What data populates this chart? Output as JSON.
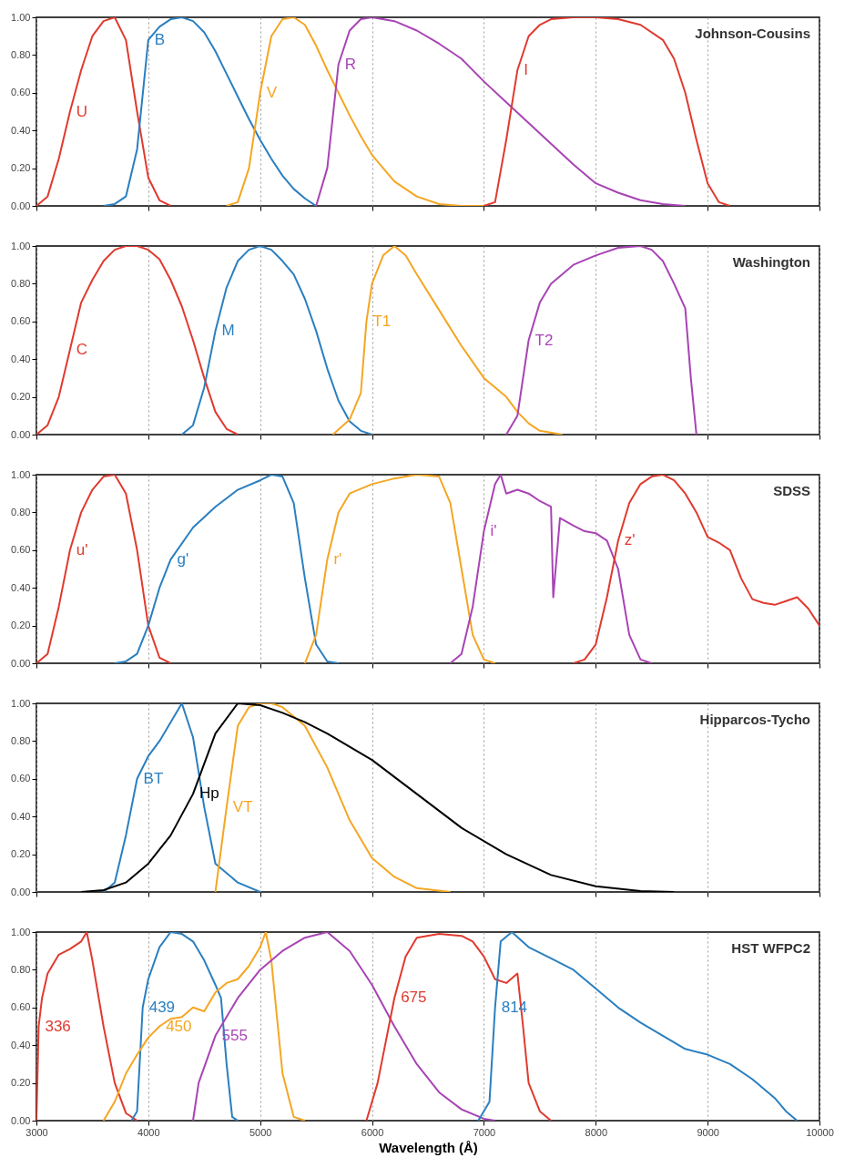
{
  "chart_data": [
    {
      "type": "line",
      "title": "Johnson-Cousins",
      "xlim": [
        3000,
        10000
      ],
      "xticks": [
        3000,
        4000,
        5000,
        6000,
        7000,
        8000,
        9000,
        10000
      ],
      "ylim": [
        0,
        1
      ],
      "yticks": [
        {
          "value": 0,
          "label": "0.00"
        },
        {
          "value": 0.2,
          "label": "0.20"
        },
        {
          "value": 0.4,
          "label": "0.40"
        },
        {
          "value": 0.6,
          "label": "0.60"
        },
        {
          "value": 0.8,
          "label": "0.80"
        },
        {
          "value": 1,
          "label": "1.00"
        }
      ],
      "grid": "x",
      "tick_labels": "y",
      "series": [
        {
          "name": "U",
          "color": "#e03a2f",
          "x": [
            3000,
            3100,
            3200,
            3300,
            3400,
            3500,
            3600,
            3700,
            3800,
            3900,
            4000,
            4100,
            4200
          ],
          "values": [
            0,
            0.05,
            0.25,
            0.5,
            0.72,
            0.9,
            0.98,
            1.0,
            0.88,
            0.5,
            0.15,
            0.03,
            0
          ]
        },
        {
          "name": "B",
          "color": "#2a7fc0",
          "x": [
            3600,
            3700,
            3800,
            3900,
            4000,
            4100,
            4200,
            4300,
            4400,
            4500,
            4600,
            4700,
            4800,
            4900,
            5000,
            5100,
            5200,
            5300,
            5400,
            5500
          ],
          "values": [
            0,
            0.01,
            0.05,
            0.3,
            0.88,
            0.95,
            0.99,
            1.0,
            0.98,
            0.92,
            0.82,
            0.7,
            0.58,
            0.46,
            0.35,
            0.25,
            0.16,
            0.09,
            0.04,
            0
          ]
        },
        {
          "name": "V",
          "color": "#f5a623",
          "x": [
            4700,
            4800,
            4900,
            5000,
            5100,
            5200,
            5300,
            5400,
            5500,
            5600,
            5700,
            5800,
            5900,
            6000,
            6200,
            6400,
            6600,
            6800,
            7000
          ],
          "values": [
            0,
            0.02,
            0.2,
            0.6,
            0.9,
            0.99,
            1.0,
            0.96,
            0.85,
            0.72,
            0.6,
            0.48,
            0.37,
            0.27,
            0.13,
            0.05,
            0.01,
            0,
            0
          ]
        },
        {
          "name": "R",
          "color": "#a844b4",
          "x": [
            5500,
            5600,
            5700,
            5800,
            5900,
            6000,
            6200,
            6400,
            6600,
            6800,
            7000,
            7200,
            7400,
            7600,
            7800,
            8000,
            8200,
            8400,
            8600,
            8800
          ],
          "values": [
            0,
            0.2,
            0.75,
            0.93,
            0.99,
            1.0,
            0.98,
            0.93,
            0.86,
            0.78,
            0.66,
            0.55,
            0.44,
            0.33,
            0.22,
            0.12,
            0.07,
            0.03,
            0.01,
            0
          ]
        },
        {
          "name": "I",
          "color": "#e03a2f",
          "x": [
            7000,
            7100,
            7200,
            7300,
            7400,
            7500,
            7600,
            7800,
            8000,
            8200,
            8400,
            8600,
            8700,
            8800,
            8900,
            9000,
            9100,
            9200
          ],
          "values": [
            0,
            0.02,
            0.35,
            0.72,
            0.9,
            0.96,
            0.99,
            1.0,
            1.0,
            0.99,
            0.96,
            0.88,
            0.78,
            0.6,
            0.35,
            0.12,
            0.02,
            0
          ]
        }
      ]
    },
    {
      "type": "line",
      "title": "Washington",
      "xlim": [
        3000,
        10000
      ],
      "xticks": [
        3000,
        4000,
        5000,
        6000,
        7000,
        8000,
        9000,
        10000
      ],
      "ylim": [
        0,
        1
      ],
      "yticks": [
        {
          "value": 0,
          "label": "0.00"
        },
        {
          "value": 0.2,
          "label": "0.20"
        },
        {
          "value": 0.4,
          "label": "0.40"
        },
        {
          "value": 0.6,
          "label": "0.60"
        },
        {
          "value": 0.8,
          "label": "0.80"
        },
        {
          "value": 1,
          "label": "1.00"
        }
      ],
      "grid": "x",
      "tick_labels": "y",
      "series": [
        {
          "name": "C",
          "color": "#e03a2f",
          "x": [
            3000,
            3100,
            3200,
            3300,
            3400,
            3500,
            3600,
            3700,
            3800,
            3900,
            4000,
            4100,
            4200,
            4300,
            4400,
            4500,
            4600,
            4700,
            4800
          ],
          "values": [
            0,
            0.05,
            0.2,
            0.45,
            0.7,
            0.82,
            0.92,
            0.98,
            1.0,
            1.0,
            0.98,
            0.93,
            0.82,
            0.68,
            0.5,
            0.3,
            0.12,
            0.03,
            0
          ]
        },
        {
          "name": "M",
          "color": "#2a7fc0",
          "x": [
            4300,
            4400,
            4500,
            4600,
            4700,
            4800,
            4900,
            5000,
            5100,
            5200,
            5300,
            5400,
            5500,
            5600,
            5700,
            5800,
            5900,
            6000
          ],
          "values": [
            0,
            0.05,
            0.25,
            0.55,
            0.78,
            0.92,
            0.98,
            1.0,
            0.98,
            0.92,
            0.85,
            0.72,
            0.55,
            0.35,
            0.18,
            0.07,
            0.02,
            0
          ]
        },
        {
          "name": "T1",
          "color": "#f5a623",
          "x": [
            5650,
            5800,
            5900,
            5950,
            6000,
            6100,
            6200,
            6300,
            6400,
            6600,
            6800,
            7000,
            7200,
            7300,
            7400,
            7500,
            7700
          ],
          "values": [
            0,
            0.08,
            0.22,
            0.6,
            0.8,
            0.95,
            1.0,
            0.95,
            0.85,
            0.66,
            0.47,
            0.3,
            0.2,
            0.12,
            0.06,
            0.02,
            0
          ]
        },
        {
          "name": "T2",
          "color": "#a844b4",
          "x": [
            7200,
            7300,
            7400,
            7500,
            7600,
            7800,
            8000,
            8200,
            8400,
            8500,
            8600,
            8700,
            8800,
            8850,
            8900
          ],
          "values": [
            0,
            0.1,
            0.5,
            0.7,
            0.8,
            0.9,
            0.95,
            0.99,
            1.0,
            0.98,
            0.92,
            0.8,
            0.67,
            0.3,
            0
          ]
        }
      ]
    },
    {
      "type": "line",
      "title": "SDSS",
      "xlim": [
        3000,
        10000
      ],
      "xticks": [
        3000,
        4000,
        5000,
        6000,
        7000,
        8000,
        9000,
        10000
      ],
      "ylim": [
        0,
        1
      ],
      "yticks": [
        {
          "value": 0,
          "label": "0.00"
        },
        {
          "value": 0.2,
          "label": "0.20"
        },
        {
          "value": 0.4,
          "label": "0.40"
        },
        {
          "value": 0.6,
          "label": "0.60"
        },
        {
          "value": 0.8,
          "label": "0.80"
        },
        {
          "value": 1,
          "label": "1.00"
        }
      ],
      "grid": "x",
      "tick_labels": "y",
      "series": [
        {
          "name": "u'",
          "color": "#e03a2f",
          "x": [
            3000,
            3100,
            3200,
            3300,
            3400,
            3500,
            3600,
            3700,
            3800,
            3900,
            4000,
            4100,
            4200
          ],
          "values": [
            0,
            0.05,
            0.3,
            0.6,
            0.8,
            0.92,
            0.99,
            1.0,
            0.9,
            0.6,
            0.2,
            0.03,
            0
          ]
        },
        {
          "name": "g'",
          "color": "#2a7fc0",
          "x": [
            3700,
            3800,
            3900,
            4000,
            4100,
            4200,
            4400,
            4600,
            4800,
            5000,
            5100,
            5200,
            5300,
            5400,
            5500,
            5600,
            5700
          ],
          "values": [
            0,
            0.01,
            0.05,
            0.2,
            0.4,
            0.55,
            0.72,
            0.83,
            0.92,
            0.97,
            1.0,
            0.99,
            0.85,
            0.45,
            0.1,
            0.01,
            0
          ]
        },
        {
          "name": "r'",
          "color": "#f5a623",
          "x": [
            5400,
            5500,
            5600,
            5700,
            5800,
            6000,
            6200,
            6400,
            6600,
            6700,
            6800,
            6900,
            7000,
            7100
          ],
          "values": [
            0,
            0.15,
            0.55,
            0.8,
            0.9,
            0.95,
            0.98,
            1.0,
            0.99,
            0.85,
            0.5,
            0.15,
            0.02,
            0
          ]
        },
        {
          "name": "i'",
          "color": "#a844b4",
          "x": [
            6700,
            6800,
            6900,
            7000,
            7100,
            7150,
            7200,
            7300,
            7400,
            7500,
            7600,
            7620,
            7680,
            7800,
            7900,
            8000,
            8100,
            8200,
            8300,
            8400,
            8500
          ],
          "values": [
            0,
            0.05,
            0.3,
            0.7,
            0.95,
            1.0,
            0.9,
            0.92,
            0.9,
            0.86,
            0.83,
            0.35,
            0.77,
            0.73,
            0.7,
            0.69,
            0.65,
            0.5,
            0.15,
            0.02,
            0
          ]
        },
        {
          "name": "z'",
          "color": "#e03a2f",
          "x": [
            7800,
            7900,
            8000,
            8100,
            8200,
            8300,
            8400,
            8500,
            8600,
            8700,
            8800,
            8900,
            9000,
            9100,
            9200,
            9300,
            9400,
            9500,
            9600,
            9700,
            9800,
            9900,
            10000
          ],
          "values": [
            0,
            0.02,
            0.1,
            0.35,
            0.65,
            0.85,
            0.95,
            0.99,
            1.0,
            0.97,
            0.9,
            0.8,
            0.67,
            0.64,
            0.6,
            0.45,
            0.34,
            0.32,
            0.31,
            0.33,
            0.35,
            0.29,
            0.2
          ]
        }
      ]
    },
    {
      "type": "line",
      "title": "Hipparcos-Tycho",
      "xlim": [
        3000,
        10000
      ],
      "xticks": [
        3000,
        4000,
        5000,
        6000,
        7000,
        8000,
        9000,
        10000
      ],
      "ylim": [
        0,
        1
      ],
      "yticks": [
        {
          "value": 0,
          "label": "0.00"
        },
        {
          "value": 0.2,
          "label": "0.20"
        },
        {
          "value": 0.4,
          "label": "0.40"
        },
        {
          "value": 0.6,
          "label": "0.60"
        },
        {
          "value": 0.8,
          "label": "0.80"
        },
        {
          "value": 1,
          "label": "1.00"
        }
      ],
      "grid": "x",
      "tick_labels": "y",
      "series": [
        {
          "name": "BT",
          "color": "#2a7fc0",
          "x": [
            3600,
            3700,
            3800,
            3900,
            4000,
            4100,
            4200,
            4300,
            4400,
            4500,
            4600,
            4800,
            5000
          ],
          "values": [
            0,
            0.05,
            0.3,
            0.6,
            0.72,
            0.8,
            0.9,
            1.0,
            0.82,
            0.45,
            0.15,
            0.05,
            0
          ]
        },
        {
          "name": "VT",
          "color": "#f5a623",
          "x": [
            4600,
            4700,
            4800,
            4900,
            5000,
            5100,
            5200,
            5400,
            5600,
            5800,
            6000,
            6200,
            6400,
            6700
          ],
          "values": [
            0,
            0.45,
            0.88,
            0.98,
            1.0,
            1.0,
            0.98,
            0.88,
            0.66,
            0.38,
            0.18,
            0.08,
            0.02,
            0
          ]
        },
        {
          "name": "Hp",
          "color": "#000000",
          "x": [
            3400,
            3600,
            3800,
            4000,
            4200,
            4400,
            4600,
            4800,
            5000,
            5200,
            5400,
            5600,
            6000,
            6400,
            6800,
            7200,
            7600,
            8000,
            8400,
            8700
          ],
          "values": [
            0,
            0.01,
            0.05,
            0.15,
            0.3,
            0.52,
            0.84,
            1.0,
            0.99,
            0.95,
            0.9,
            0.84,
            0.7,
            0.52,
            0.34,
            0.2,
            0.09,
            0.03,
            0.005,
            0
          ]
        }
      ]
    },
    {
      "type": "line",
      "title": "HST WFPC2",
      "xlabel": "Wavelength (Å)",
      "xlim": [
        3000,
        10000
      ],
      "xticks": [
        3000,
        4000,
        5000,
        6000,
        7000,
        8000,
        9000,
        10000
      ],
      "ylim": [
        0,
        1
      ],
      "yticks": [
        {
          "value": 0,
          "label": "0.00"
        },
        {
          "value": 0.2,
          "label": "0.20"
        },
        {
          "value": 0.4,
          "label": "0.40"
        },
        {
          "value": 0.6,
          "label": "0.60"
        },
        {
          "value": 0.8,
          "label": "0.80"
        },
        {
          "value": 1,
          "label": "1.00"
        }
      ],
      "grid": "x",
      "series": [
        {
          "name": "336",
          "color": "#e03a2f",
          "x": [
            3000,
            3020,
            3050,
            3100,
            3200,
            3300,
            3400,
            3450,
            3500,
            3600,
            3700,
            3800,
            3900
          ],
          "values": [
            0,
            0.5,
            0.65,
            0.78,
            0.88,
            0.91,
            0.95,
            1.0,
            0.85,
            0.5,
            0.2,
            0.04,
            0
          ]
        },
        {
          "name": "439",
          "color": "#2a7fc0",
          "x": [
            3850,
            3900,
            3950,
            4000,
            4100,
            4200,
            4300,
            4400,
            4500,
            4600,
            4650,
            4700,
            4750,
            4800
          ],
          "values": [
            0,
            0.05,
            0.6,
            0.75,
            0.92,
            1.0,
            0.99,
            0.95,
            0.85,
            0.72,
            0.65,
            0.3,
            0.02,
            0
          ]
        },
        {
          "name": "450",
          "color": "#f5a623",
          "x": [
            3600,
            3700,
            3800,
            3900,
            4000,
            4100,
            4200,
            4300,
            4400,
            4500,
            4600,
            4700,
            4800,
            4900,
            5000,
            5050,
            5100,
            5200,
            5300,
            5400
          ],
          "values": [
            0,
            0.1,
            0.25,
            0.35,
            0.44,
            0.5,
            0.54,
            0.55,
            0.6,
            0.58,
            0.68,
            0.73,
            0.75,
            0.82,
            0.92,
            1.0,
            0.85,
            0.25,
            0.02,
            0
          ]
        },
        {
          "name": "555",
          "color": "#a844b4",
          "x": [
            4400,
            4450,
            4600,
            4800,
            5000,
            5200,
            5400,
            5600,
            5800,
            6000,
            6200,
            6400,
            6600,
            6800,
            7000,
            7100
          ],
          "values": [
            0,
            0.2,
            0.45,
            0.65,
            0.8,
            0.9,
            0.97,
            1.0,
            0.9,
            0.72,
            0.5,
            0.3,
            0.15,
            0.06,
            0.01,
            0
          ]
        },
        {
          "name": "675",
          "color": "#e03a2f",
          "x": [
            5950,
            6050,
            6200,
            6300,
            6400,
            6600,
            6800,
            6900,
            7000,
            7100,
            7200,
            7300,
            7350,
            7400,
            7500,
            7600
          ],
          "values": [
            0,
            0.2,
            0.65,
            0.87,
            0.97,
            0.99,
            0.98,
            0.95,
            0.87,
            0.75,
            0.73,
            0.78,
            0.5,
            0.2,
            0.05,
            0
          ]
        },
        {
          "name": "814",
          "color": "#2a7fc0",
          "x": [
            6950,
            7050,
            7100,
            7150,
            7250,
            7400,
            7600,
            7800,
            8000,
            8200,
            8400,
            8600,
            8800,
            9000,
            9200,
            9400,
            9600,
            9700,
            9800
          ],
          "values": [
            0,
            0.1,
            0.6,
            0.95,
            1.0,
            0.92,
            0.86,
            0.8,
            0.7,
            0.6,
            0.52,
            0.45,
            0.38,
            0.35,
            0.3,
            0.22,
            0.12,
            0.05,
            0
          ]
        }
      ]
    }
  ]
}
